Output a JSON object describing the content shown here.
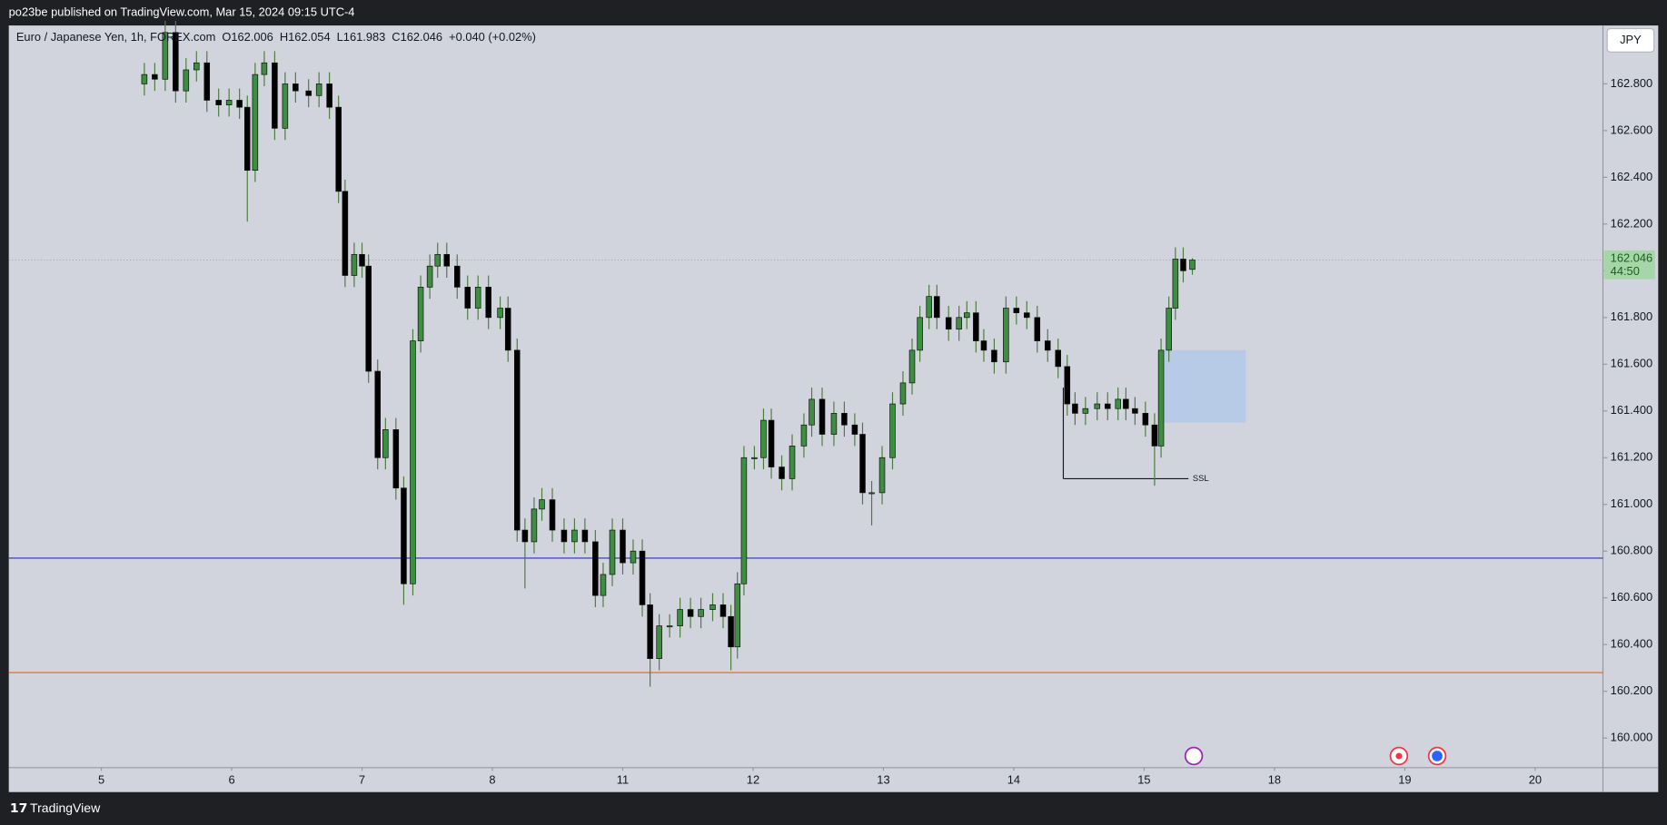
{
  "header": {
    "text": "po23be published on TradingView.com, Mar 15, 2024 09:15 UTC-4"
  },
  "footer": {
    "brand": "TradingView"
  },
  "currency": "JPY",
  "countdown": "44:50",
  "chart_data": {
    "type": "candlestick",
    "title": "Euro / Japanese Yen, 1h, FOREX.com",
    "legend": [
      "O162.006",
      "H162.054",
      "L161.983",
      "C162.046",
      "+0.040 (+0.02%)"
    ],
    "x": [
      0.33,
      0.41,
      0.49,
      0.57,
      0.65,
      0.73,
      0.81,
      0.9,
      0.98,
      1.06,
      1.12,
      1.18,
      1.25,
      1.33,
      1.41,
      1.49,
      1.59,
      1.67,
      1.75,
      1.82,
      1.87,
      1.94,
      2.0,
      2.05,
      2.12,
      2.18,
      2.26,
      2.32,
      2.39,
      2.45,
      2.52,
      2.58,
      2.65,
      2.73,
      2.81,
      2.89,
      2.97,
      3.06,
      3.12,
      3.19,
      3.25,
      3.32,
      3.38,
      3.46,
      3.55,
      3.63,
      3.71,
      3.79,
      3.85,
      3.92,
      4.0,
      4.08,
      4.15,
      4.21,
      4.28,
      4.36,
      4.44,
      4.52,
      4.6,
      4.69,
      4.77,
      4.83,
      4.88,
      4.93,
      5.01,
      5.08,
      5.14,
      5.22,
      5.3,
      5.39,
      5.45,
      5.53,
      5.62,
      5.7,
      5.78,
      5.84,
      5.91,
      5.99,
      6.07,
      6.15,
      6.22,
      6.28,
      6.35,
      6.41,
      6.5,
      6.58,
      6.64,
      6.71,
      6.77,
      6.85,
      6.94,
      7.02,
      7.1,
      7.18,
      7.26,
      7.34,
      7.41,
      7.47,
      7.55,
      7.64,
      7.72,
      7.8,
      7.86,
      7.93,
      8.01,
      8.08,
      8.13,
      8.19,
      8.24,
      8.3,
      8.37
    ],
    "open": [
      162.8,
      162.84,
      162.82,
      163.02,
      162.77,
      162.86,
      162.89,
      162.73,
      162.71,
      162.73,
      162.7,
      162.43,
      162.84,
      162.89,
      162.61,
      162.8,
      162.77,
      162.75,
      162.8,
      162.7,
      162.34,
      161.98,
      162.07,
      162.02,
      161.57,
      161.2,
      161.32,
      161.07,
      160.66,
      161.7,
      161.93,
      162.02,
      162.07,
      162.02,
      161.93,
      161.84,
      161.93,
      161.8,
      161.84,
      161.66,
      160.89,
      160.84,
      160.98,
      161.02,
      160.89,
      160.84,
      160.89,
      160.84,
      160.61,
      160.7,
      160.89,
      160.75,
      160.8,
      160.57,
      160.34,
      160.48,
      160.48,
      160.55,
      160.52,
      160.55,
      160.57,
      160.52,
      160.39,
      160.66,
      161.2,
      161.2,
      161.36,
      161.16,
      161.11,
      161.25,
      161.34,
      161.45,
      161.3,
      161.39,
      161.34,
      161.3,
      161.05,
      161.05,
      161.2,
      161.43,
      161.52,
      161.66,
      161.8,
      161.89,
      161.8,
      161.75,
      161.8,
      161.82,
      161.7,
      161.66,
      161.61,
      161.84,
      161.82,
      161.8,
      161.7,
      161.66,
      161.59,
      161.43,
      161.39,
      161.41,
      161.43,
      161.41,
      161.45,
      161.41,
      161.39,
      161.34,
      161.25,
      161.66,
      161.84,
      162.05,
      162.006
    ],
    "high": [
      162.89,
      162.89,
      163.07,
      163.07,
      162.91,
      162.94,
      162.94,
      162.78,
      162.78,
      162.78,
      162.75,
      162.89,
      162.94,
      162.94,
      162.85,
      162.85,
      162.82,
      162.85,
      162.85,
      162.75,
      162.39,
      162.12,
      162.12,
      162.07,
      161.62,
      161.37,
      161.37,
      161.12,
      161.75,
      161.98,
      162.07,
      162.12,
      162.12,
      162.07,
      161.98,
      161.98,
      161.98,
      161.89,
      161.89,
      161.71,
      160.94,
      161.03,
      161.07,
      161.07,
      160.94,
      160.94,
      160.94,
      160.89,
      160.75,
      160.94,
      160.94,
      160.85,
      160.85,
      160.62,
      160.53,
      160.53,
      160.6,
      160.6,
      160.6,
      160.62,
      160.62,
      160.57,
      160.71,
      161.25,
      161.25,
      161.41,
      161.41,
      161.21,
      161.3,
      161.39,
      161.5,
      161.5,
      161.44,
      161.44,
      161.39,
      161.35,
      161.1,
      161.25,
      161.48,
      161.57,
      161.71,
      161.85,
      161.94,
      161.94,
      161.85,
      161.85,
      161.87,
      161.87,
      161.75,
      161.71,
      161.89,
      161.89,
      161.87,
      161.85,
      161.75,
      161.71,
      161.64,
      161.48,
      161.46,
      161.48,
      161.48,
      161.5,
      161.5,
      161.46,
      161.44,
      161.39,
      161.71,
      161.89,
      162.1,
      162.1,
      162.054
    ],
    "low": [
      162.75,
      162.77,
      162.77,
      162.72,
      162.72,
      162.81,
      162.68,
      162.66,
      162.66,
      162.65,
      162.21,
      162.38,
      162.79,
      162.56,
      162.56,
      162.72,
      162.7,
      162.7,
      162.65,
      162.29,
      161.93,
      161.93,
      161.97,
      161.52,
      161.15,
      161.15,
      161.02,
      160.57,
      160.61,
      161.65,
      161.88,
      161.97,
      161.97,
      161.88,
      161.79,
      161.79,
      161.75,
      161.75,
      161.61,
      160.84,
      160.64,
      160.79,
      160.93,
      160.84,
      160.79,
      160.79,
      160.79,
      160.56,
      160.56,
      160.65,
      160.7,
      160.7,
      160.52,
      160.22,
      160.29,
      160.43,
      160.43,
      160.47,
      160.47,
      160.5,
      160.47,
      160.29,
      160.34,
      160.61,
      161.15,
      161.15,
      161.11,
      161.06,
      161.06,
      161.2,
      161.29,
      161.25,
      161.25,
      161.29,
      161.25,
      161.0,
      160.91,
      161.0,
      161.15,
      161.38,
      161.47,
      161.61,
      161.75,
      161.75,
      161.7,
      161.7,
      161.75,
      161.65,
      161.61,
      161.56,
      161.56,
      161.77,
      161.75,
      161.65,
      161.61,
      161.54,
      161.38,
      161.34,
      161.34,
      161.36,
      161.36,
      161.36,
      161.36,
      161.34,
      161.29,
      161.08,
      161.2,
      161.61,
      161.79,
      161.95,
      161.983
    ],
    "close": [
      162.84,
      162.82,
      163.02,
      162.77,
      162.86,
      162.89,
      162.73,
      162.71,
      162.73,
      162.7,
      162.43,
      162.84,
      162.89,
      162.61,
      162.8,
      162.77,
      162.75,
      162.8,
      162.7,
      162.34,
      161.98,
      162.07,
      162.02,
      161.57,
      161.2,
      161.32,
      161.07,
      160.66,
      161.7,
      161.93,
      162.02,
      162.07,
      162.02,
      161.93,
      161.84,
      161.93,
      161.8,
      161.84,
      161.66,
      160.89,
      160.84,
      160.98,
      161.02,
      160.89,
      160.84,
      160.89,
      160.84,
      160.61,
      160.7,
      160.89,
      160.75,
      160.8,
      160.57,
      160.34,
      160.48,
      160.48,
      160.55,
      160.52,
      160.55,
      160.57,
      160.52,
      160.39,
      160.66,
      161.2,
      161.2,
      161.36,
      161.16,
      161.11,
      161.25,
      161.34,
      161.45,
      161.3,
      161.39,
      161.34,
      161.3,
      161.05,
      161.05,
      161.2,
      161.43,
      161.52,
      161.66,
      161.8,
      161.89,
      161.8,
      161.75,
      161.8,
      161.82,
      161.7,
      161.66,
      161.61,
      161.84,
      161.82,
      161.8,
      161.7,
      161.66,
      161.59,
      161.43,
      161.39,
      161.41,
      161.43,
      161.41,
      161.45,
      161.41,
      161.39,
      161.34,
      161.25,
      161.66,
      161.84,
      162.05,
      162.0,
      162.046
    ],
    "up_color": "#3e8e41",
    "down_color": "#000000",
    "wick_color": "#4a7d3c",
    "price_tag_color": "#a5d6a7",
    "grid": false,
    "xlim": [
      -0.71,
      11.52
    ],
    "xticks": [
      {
        "value": 0,
        "label": "5"
      },
      {
        "value": 1,
        "label": "6"
      },
      {
        "value": 2,
        "label": "7"
      },
      {
        "value": 3,
        "label": "8"
      },
      {
        "value": 4,
        "label": "11"
      },
      {
        "value": 5,
        "label": "12"
      },
      {
        "value": 6,
        "label": "13"
      },
      {
        "value": 7,
        "label": "14"
      },
      {
        "value": 8,
        "label": "15"
      },
      {
        "value": 9,
        "label": "18"
      },
      {
        "value": 10,
        "label": "19"
      },
      {
        "value": 11,
        "label": "20"
      }
    ],
    "ylim": [
      159.873,
      163.05
    ],
    "yticks": [
      {
        "value": 160.0,
        "label": "160.000"
      },
      {
        "value": 160.2,
        "label": "160.200"
      },
      {
        "value": 160.4,
        "label": "160.400"
      },
      {
        "value": 160.6,
        "label": "160.600"
      },
      {
        "value": 160.8,
        "label": "160.800"
      },
      {
        "value": 161.0,
        "label": "161.000"
      },
      {
        "value": 161.2,
        "label": "161.200"
      },
      {
        "value": 161.4,
        "label": "161.400"
      },
      {
        "value": 161.6,
        "label": "161.600"
      },
      {
        "value": 161.8,
        "label": "161.800"
      },
      {
        "value": 162.0,
        "label": "162.000"
      },
      {
        "value": 162.2,
        "label": "162.200"
      },
      {
        "value": 162.4,
        "label": "162.400"
      },
      {
        "value": 162.6,
        "label": "162.600"
      },
      {
        "value": 162.8,
        "label": "162.800"
      }
    ],
    "hlines": [
      {
        "value": 160.77,
        "color": "#2432b8"
      },
      {
        "value": 160.28,
        "color": "#e0632a"
      }
    ],
    "zone": {
      "x": [
        8.14,
        8.78
      ],
      "y": [
        161.35,
        161.66
      ],
      "color": "#b4c9e8"
    },
    "ssl": {
      "label": "SSL",
      "x": [
        7.38,
        8.34
      ],
      "y": 161.11,
      "y_start": 161.5
    }
  }
}
